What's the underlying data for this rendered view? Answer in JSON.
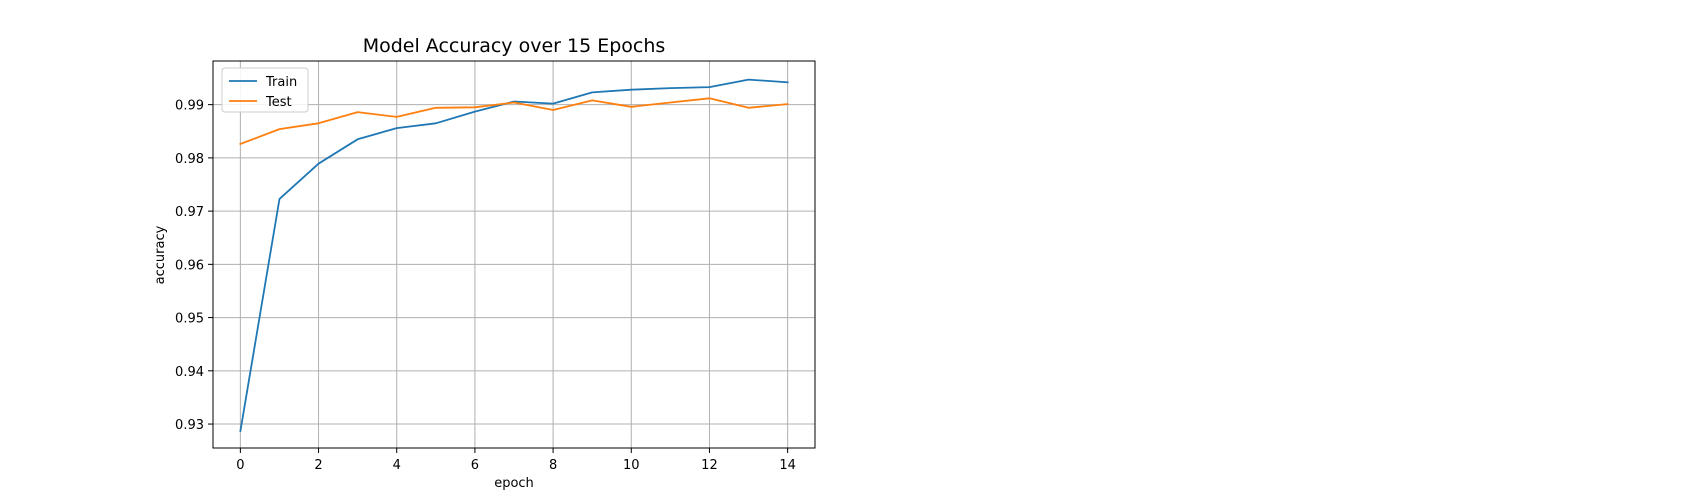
{
  "chart_data": {
    "type": "line",
    "title": "Model Accuracy over 15 Epochs",
    "xlabel": "epoch",
    "ylabel": "accuracy",
    "xlim": [
      -0.7,
      14.7
    ],
    "ylim": [
      0.9255,
      0.9982
    ],
    "xticks": [
      0,
      2,
      4,
      6,
      8,
      10,
      12,
      14
    ],
    "yticks": [
      0.93,
      0.94,
      0.95,
      0.96,
      0.97,
      0.98,
      0.99
    ],
    "ytick_labels": [
      "0.93",
      "0.94",
      "0.95",
      "0.96",
      "0.97",
      "0.98",
      "0.99"
    ],
    "grid": true,
    "legend_position": "upper-left",
    "x": [
      0,
      1,
      2,
      3,
      4,
      5,
      6,
      7,
      8,
      9,
      10,
      11,
      12,
      13,
      14
    ],
    "series": [
      {
        "name": "Train",
        "color": "#1f77b4",
        "values": [
          0.9287,
          0.9723,
          0.9789,
          0.9835,
          0.9856,
          0.9865,
          0.9887,
          0.9906,
          0.9902,
          0.9923,
          0.9928,
          0.9931,
          0.9933,
          0.9947,
          0.9942
        ]
      },
      {
        "name": "Test",
        "color": "#ff7f0e",
        "values": [
          0.9826,
          0.9854,
          0.9865,
          0.9886,
          0.9877,
          0.9894,
          0.9895,
          0.9904,
          0.989,
          0.9908,
          0.9896,
          0.9904,
          0.9912,
          0.9894,
          0.9901
        ]
      }
    ]
  }
}
